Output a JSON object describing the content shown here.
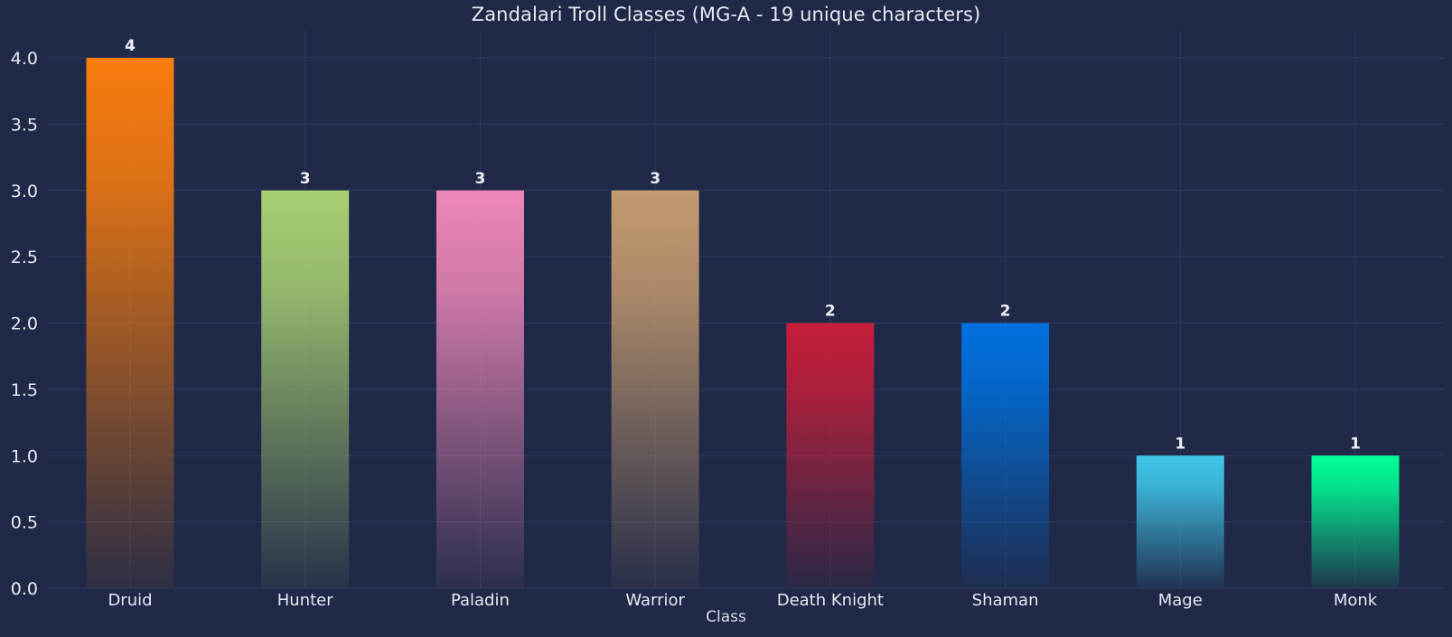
{
  "chart_data": {
    "type": "bar",
    "title": "Zandalari Troll Classes (MG-A - 19 unique characters)",
    "xlabel": "Class",
    "ylabel": "",
    "categories": [
      "Druid",
      "Hunter",
      "Paladin",
      "Warrior",
      "Death Knight",
      "Shaman",
      "Mage",
      "Monk"
    ],
    "values": [
      4,
      3,
      3,
      3,
      2,
      2,
      1,
      1
    ],
    "bar_colors": [
      "#f97c0e",
      "#a8d072",
      "#ee87b8",
      "#c49a6f",
      "#c41e3a",
      "#0070de",
      "#3fc6ea",
      "#00ff98"
    ],
    "ylim": [
      0,
      4.2
    ],
    "yticks": [
      "0.0",
      "0.5",
      "1.0",
      "1.5",
      "2.0",
      "2.5",
      "3.0",
      "3.5",
      "4.0"
    ],
    "grid": true,
    "data_labels": true
  },
  "theme": {
    "background": "#202948",
    "grid_color": "#2f3a5c",
    "text_color": "#e6e9f2"
  }
}
